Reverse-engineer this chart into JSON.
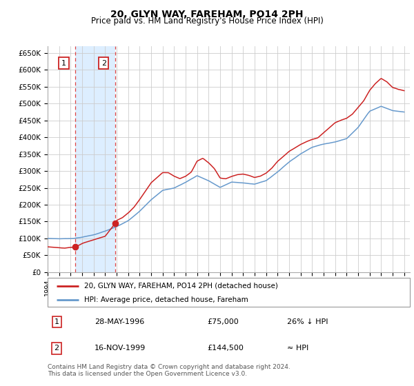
{
  "title": "20, GLYN WAY, FAREHAM, PO14 2PH",
  "subtitle": "Price paid vs. HM Land Registry's House Price Index (HPI)",
  "ylim": [
    0,
    670000
  ],
  "yticks": [
    0,
    50000,
    100000,
    150000,
    200000,
    250000,
    300000,
    350000,
    400000,
    450000,
    500000,
    550000,
    600000,
    650000
  ],
  "hpi_color": "#6699cc",
  "price_color": "#cc2222",
  "transaction1_x": 1996.41,
  "transaction1_y": 75000,
  "transaction1_label": "1",
  "transaction2_x": 1999.88,
  "transaction2_y": 144500,
  "transaction2_label": "2",
  "legend_line1": "20, GLYN WAY, FAREHAM, PO14 2PH (detached house)",
  "legend_line2": "HPI: Average price, detached house, Fareham",
  "table_row1_num": "1",
  "table_row1_date": "28-MAY-1996",
  "table_row1_price": "£75,000",
  "table_row1_hpi": "26% ↓ HPI",
  "table_row2_num": "2",
  "table_row2_date": "16-NOV-1999",
  "table_row2_price": "£144,500",
  "table_row2_hpi": "≈ HPI",
  "footnote1": "Contains HM Land Registry data © Crown copyright and database right 2024.",
  "footnote2": "This data is licensed under the Open Government Licence v3.0.",
  "xmin": 1994.0,
  "xmax": 2025.5,
  "shade_between_color": "#ddeeff",
  "vline_color": "#dd4444",
  "box_edge_color": "#cc2222",
  "hpi_anchors_x": [
    1994.0,
    1995.0,
    1996.0,
    1996.41,
    1997.0,
    1998.0,
    1999.0,
    2000.0,
    2001.0,
    2002.0,
    2003.0,
    2004.0,
    2005.0,
    2006.0,
    2007.0,
    2008.0,
    2009.0,
    2010.0,
    2011.0,
    2012.0,
    2013.0,
    2014.0,
    2015.0,
    2016.0,
    2017.0,
    2018.0,
    2019.0,
    2020.0,
    2021.0,
    2022.0,
    2023.0,
    2024.0,
    2025.0
  ],
  "hpi_anchors_y": [
    100000,
    99000,
    100000,
    101000,
    104000,
    111000,
    122000,
    135000,
    152000,
    180000,
    215000,
    243000,
    250000,
    267000,
    287000,
    272000,
    252000,
    268000,
    265000,
    262000,
    272000,
    298000,
    328000,
    352000,
    372000,
    382000,
    388000,
    398000,
    432000,
    480000,
    495000,
    482000,
    478000
  ],
  "price_anchors_x": [
    1994.0,
    1995.0,
    1995.5,
    1996.0,
    1996.41,
    1997.0,
    1997.5,
    1998.0,
    1998.5,
    1999.0,
    1999.88,
    2000.0,
    2000.5,
    2001.0,
    2001.5,
    2002.0,
    2002.5,
    2003.0,
    2003.5,
    2004.0,
    2004.5,
    2005.0,
    2005.5,
    2006.0,
    2006.5,
    2007.0,
    2007.5,
    2008.0,
    2008.5,
    2009.0,
    2009.5,
    2010.0,
    2010.5,
    2011.0,
    2011.5,
    2012.0,
    2012.5,
    2013.0,
    2013.5,
    2014.0,
    2014.5,
    2015.0,
    2015.5,
    2016.0,
    2016.5,
    2017.0,
    2017.5,
    2018.0,
    2018.5,
    2019.0,
    2019.5,
    2020.0,
    2020.5,
    2021.0,
    2021.5,
    2022.0,
    2022.5,
    2023.0,
    2023.5,
    2024.0,
    2024.5,
    2025.0
  ],
  "price_anchors_y": [
    75000,
    73000,
    72000,
    74000,
    75000,
    86000,
    92000,
    97000,
    102000,
    107000,
    144500,
    153000,
    162000,
    175000,
    192000,
    215000,
    240000,
    265000,
    280000,
    295000,
    295000,
    285000,
    278000,
    285000,
    298000,
    330000,
    338000,
    325000,
    308000,
    280000,
    278000,
    285000,
    290000,
    292000,
    288000,
    282000,
    286000,
    295000,
    310000,
    330000,
    345000,
    360000,
    370000,
    380000,
    388000,
    395000,
    400000,
    415000,
    430000,
    445000,
    452000,
    458000,
    470000,
    490000,
    510000,
    540000,
    560000,
    575000,
    565000,
    548000,
    542000,
    538000
  ]
}
